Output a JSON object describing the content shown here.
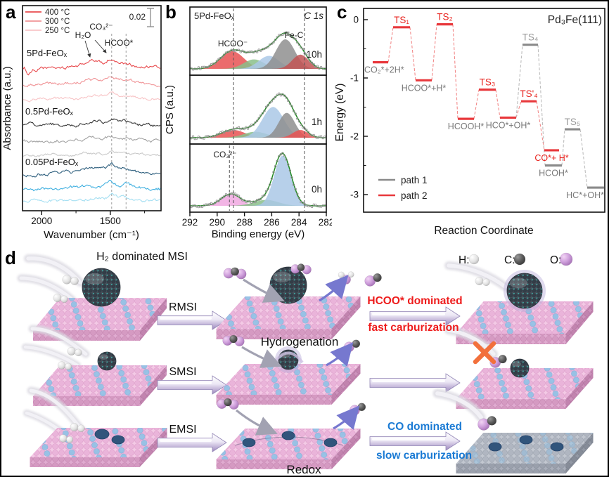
{
  "figure": {
    "panel_labels": {
      "a": "a",
      "b": "b",
      "c": "c",
      "d": "d"
    }
  },
  "chart_data": [
    {
      "panel": "a",
      "type": "line",
      "xlabel": "Wavenumber (cm⁻¹)",
      "ylabel": "Absorbance (a.u.)",
      "x_axis": {
        "range": [
          2140,
          1130
        ],
        "ticks": [
          2000,
          1500
        ],
        "minor_ticks": [
          1750,
          1250
        ]
      },
      "scale_bar_label": "0.02",
      "legend": [
        {
          "label": "400 °C",
          "color": "#e84b4e"
        },
        {
          "label": "300 °C",
          "color": "#f09497"
        },
        {
          "label": "250 °C",
          "color": "#f8c5c7"
        }
      ],
      "dashed_guides_cm1": [
        1490,
        1385
      ],
      "annotations": [
        {
          "text": "H₂O",
          "x_cm1": 1640
        },
        {
          "text": "CO₃²⁻",
          "x_cm1": 1505
        },
        {
          "text": "HCOO*",
          "x_cm1": 1390
        }
      ],
      "groups": [
        {
          "name": "5Pd-FeOₓ",
          "series": [
            {
              "temp": "400 °C",
              "color": "#e84b4e"
            },
            {
              "temp": "300 °C",
              "color": "#f09497"
            },
            {
              "temp": "250 °C",
              "color": "#f8c5c7"
            }
          ]
        },
        {
          "name": "0.5Pd-FeOₓ",
          "series": [
            {
              "temp": "400 °C",
              "color": "#3a3a3a"
            },
            {
              "temp": "300 °C",
              "color": "#a2a2a2"
            },
            {
              "temp": "250 °C",
              "color": "#c9c9c9"
            }
          ]
        },
        {
          "name": "0.05Pd-FeOₓ",
          "series": [
            {
              "temp": "400 °C",
              "color": "#2e5f7e"
            },
            {
              "temp": "300 °C",
              "color": "#41b0e0"
            },
            {
              "temp": "250 °C",
              "color": "#a5dff2"
            }
          ]
        }
      ]
    },
    {
      "panel": "b",
      "type": "area",
      "sample": "5Pd-FeOₓ",
      "region": "C 1s",
      "xlabel": "Binding energy (eV)",
      "ylabel": "CPS (a.u.)",
      "x_axis": {
        "range": [
          292,
          282
        ],
        "ticks": [
          292,
          290,
          288,
          286,
          284,
          282
        ]
      },
      "dashed_guides_ev": [
        288.8,
        283.6
      ],
      "fit_color": "#1e8a1e",
      "peak_labels": [
        {
          "text": "HCOO⁻",
          "ev": 288.85
        },
        {
          "text": "Fe-C",
          "ev": 284.3
        },
        {
          "text": "CO₃²⁻",
          "ev": 289.3
        }
      ],
      "subpanels": [
        {
          "time": "10h",
          "components": [
            {
              "center": 288.9,
              "sigma": 0.85,
              "height": 0.3,
              "color": "#e85252"
            },
            {
              "center": 287.3,
              "sigma": 0.75,
              "height": 0.16,
              "color": "#8abf8a"
            },
            {
              "center": 286.2,
              "sigma": 0.75,
              "height": 0.22,
              "color": "#aac8e6"
            },
            {
              "center": 285.0,
              "sigma": 0.7,
              "height": 0.5,
              "color": "#8f8f8f"
            },
            {
              "center": 283.9,
              "sigma": 0.6,
              "height": 0.24,
              "color": "#c25454"
            }
          ]
        },
        {
          "time": "1h",
          "components": [
            {
              "center": 288.8,
              "sigma": 0.85,
              "height": 0.13,
              "color": "#e85252"
            },
            {
              "center": 287.2,
              "sigma": 0.85,
              "height": 0.1,
              "color": "#8abf8a"
            },
            {
              "center": 285.9,
              "sigma": 0.78,
              "height": 0.52,
              "color": "#aac8e6"
            },
            {
              "center": 284.9,
              "sigma": 0.6,
              "height": 0.42,
              "color": "#8f8f8f"
            },
            {
              "center": 283.9,
              "sigma": 0.55,
              "height": 0.13,
              "color": "#e85252"
            }
          ]
        },
        {
          "time": "0h",
          "extra_dashed_ev": 289.1,
          "components": [
            {
              "center": 289.0,
              "sigma": 0.7,
              "height": 0.2,
              "color": "#f0a8e0"
            },
            {
              "center": 286.4,
              "sigma": 0.9,
              "height": 0.1,
              "color": "#8abf8a"
            },
            {
              "center": 285.2,
              "sigma": 0.62,
              "height": 0.85,
              "color": "#aac8e6"
            }
          ]
        }
      ]
    },
    {
      "panel": "c",
      "type": "energy_diagram",
      "title": "Pd₃Fe(111)",
      "xlabel": "Reaction Coordinate",
      "ylabel": "Energy (eV)",
      "y_axis": {
        "ticks": [
          0,
          -1,
          -2,
          -3
        ],
        "minor_ticks": [
          -0.5,
          -1.5,
          -2.5
        ]
      },
      "path_colors": {
        "1": "#8a8a8a",
        "2": "#e8383c"
      },
      "legend": [
        {
          "label": "path 1",
          "color": "#8a8a8a"
        },
        {
          "label": "path 2",
          "color": "#e8383c"
        }
      ],
      "levels": [
        {
          "id": "s1",
          "label": "CO₂*+2H*",
          "energy_ev": -0.73,
          "path": 2,
          "x": [
            58,
            80
          ],
          "label_pos": "below",
          "label_color": "#787878",
          "anchor": "start",
          "label_x": 46
        },
        {
          "id": "ts1",
          "label": "TS₁",
          "energy_ev": -0.13,
          "path": 2,
          "x": [
            87,
            111
          ],
          "label_pos": "above",
          "label_color": "#e8231e"
        },
        {
          "id": "s2",
          "label": "HCOO*+H*",
          "energy_ev": -1.04,
          "path": 2,
          "x": [
            119,
            142
          ],
          "label_pos": "below",
          "label_color": "#787878"
        },
        {
          "id": "ts2",
          "label": "TS₂",
          "energy_ev": -0.08,
          "path": 2,
          "x": [
            149,
            172
          ],
          "label_pos": "above",
          "label_color": "#e8231e"
        },
        {
          "id": "s3",
          "label": "HCOOH*",
          "energy_ev": -1.7,
          "path": 2,
          "x": [
            179,
            202
          ],
          "label_pos": "below",
          "label_color": "#787878"
        },
        {
          "id": "ts3",
          "label": "TS₃",
          "energy_ev": -1.2,
          "path": 2,
          "x": [
            209,
            233
          ],
          "label_pos": "above",
          "label_color": "#e8231e"
        },
        {
          "id": "s4",
          "label": "HCO*+OH*",
          "energy_ev": -1.68,
          "path": 2,
          "x": [
            239,
            262
          ],
          "label_pos": "below",
          "label_color": "#787878"
        },
        {
          "id": "ts4",
          "label": "TS₄",
          "energy_ev": -0.43,
          "path": 1,
          "x": [
            271,
            293
          ],
          "label_pos": "above",
          "label_color": "#9a9a9a"
        },
        {
          "id": "ts4p",
          "label": "TS'₄",
          "energy_ev": -1.4,
          "path": 2,
          "x": [
            269,
            291
          ],
          "label_pos": "above",
          "label_color": "#e8231e"
        },
        {
          "id": "s5",
          "label": "CO*+ H*",
          "energy_ev": -2.24,
          "path": 2,
          "x": [
            302,
            323
          ],
          "label_pos": "below",
          "label_color": "#e8231e"
        },
        {
          "id": "s6",
          "label": "HCOH*",
          "energy_ev": -2.5,
          "path": 1,
          "x": [
            303,
            327
          ],
          "label_pos": "below",
          "label_color": "#787878"
        },
        {
          "id": "ts5",
          "label": "TS₅",
          "energy_ev": -1.88,
          "path": 1,
          "x": [
            331,
            353
          ],
          "label_pos": "above",
          "label_color": "#9a9a9a"
        },
        {
          "id": "s7",
          "label": "HC*+OH*",
          "energy_ev": -2.88,
          "path": 1,
          "x": [
            363,
            387
          ],
          "label_pos": "below",
          "label_color": "#787878",
          "anchor": "end",
          "label_x": 387
        }
      ],
      "connections": [
        [
          "s1",
          "ts1",
          2
        ],
        [
          "ts1",
          "s2",
          2
        ],
        [
          "s2",
          "ts2",
          2
        ],
        [
          "ts2",
          "s3",
          2
        ],
        [
          "s3",
          "ts3",
          2
        ],
        [
          "ts3",
          "s4",
          2
        ],
        [
          "s4",
          "ts4p",
          2
        ],
        [
          "ts4p",
          "s5",
          2
        ],
        [
          "s4",
          "ts4",
          1
        ],
        [
          "ts4",
          "s6",
          1
        ],
        [
          "s6",
          "ts5",
          1
        ],
        [
          "ts5",
          "s7",
          1
        ]
      ]
    }
  ],
  "panel_d": {
    "title_row1": "H₂ dominated MSI",
    "arrow_labels": {
      "row1": "RMSI",
      "row2": "SMSI",
      "row3": "EMSI"
    },
    "process_labels": {
      "middle_top": "Hydrogenation",
      "middle_bottom": "Redox"
    },
    "outcome_row1": {
      "line1": "HCOO* dominated",
      "line2": "fast carburization",
      "color": "#ee1c1c"
    },
    "outcome_row3": {
      "line1": "CO dominated",
      "line2": "slow carburization",
      "color": "#1a7ad4"
    },
    "atom_legend": [
      {
        "symbol": "H:",
        "color": "#dcdcdc"
      },
      {
        "symbol": "C:",
        "color": "#5a5a5a"
      },
      {
        "symbol": "O:",
        "color": "#bf8cd0"
      }
    ]
  }
}
